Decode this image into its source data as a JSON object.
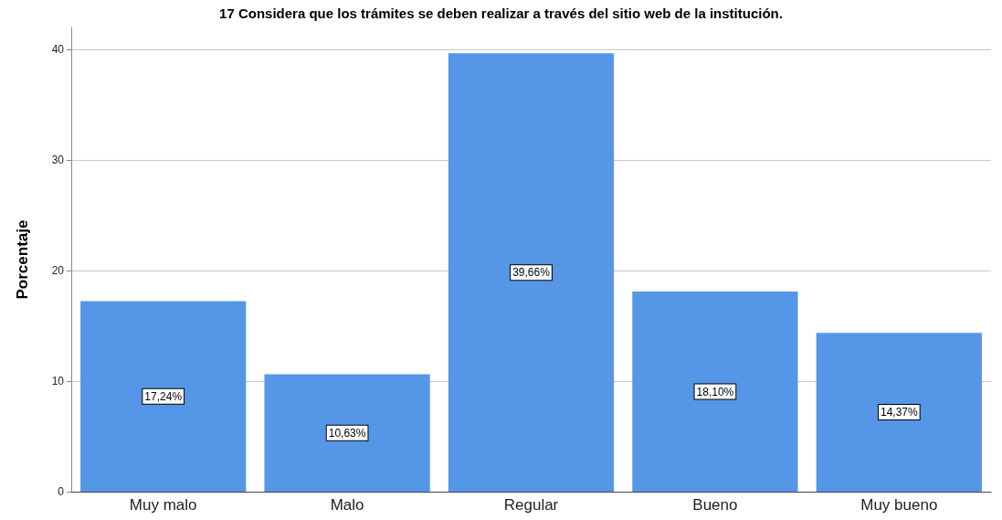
{
  "chart_data": {
    "type": "bar",
    "title": "17 Considera que los trámites se deben realizar a través del sitio web de la institución.",
    "ylabel": "Porcentaje",
    "categories": [
      "Muy malo",
      "Malo",
      "Regular",
      "Bueno",
      "Muy bueno"
    ],
    "values": [
      17.24,
      10.63,
      39.66,
      18.1,
      14.37
    ],
    "value_labels": [
      "17,24%",
      "10,63%",
      "39,66%",
      "18,10%",
      "14,37%"
    ],
    "color": "#5596e6",
    "ylim": [
      0,
      42
    ],
    "yticks": [
      0,
      10,
      20,
      30,
      40
    ],
    "grid": "y"
  }
}
